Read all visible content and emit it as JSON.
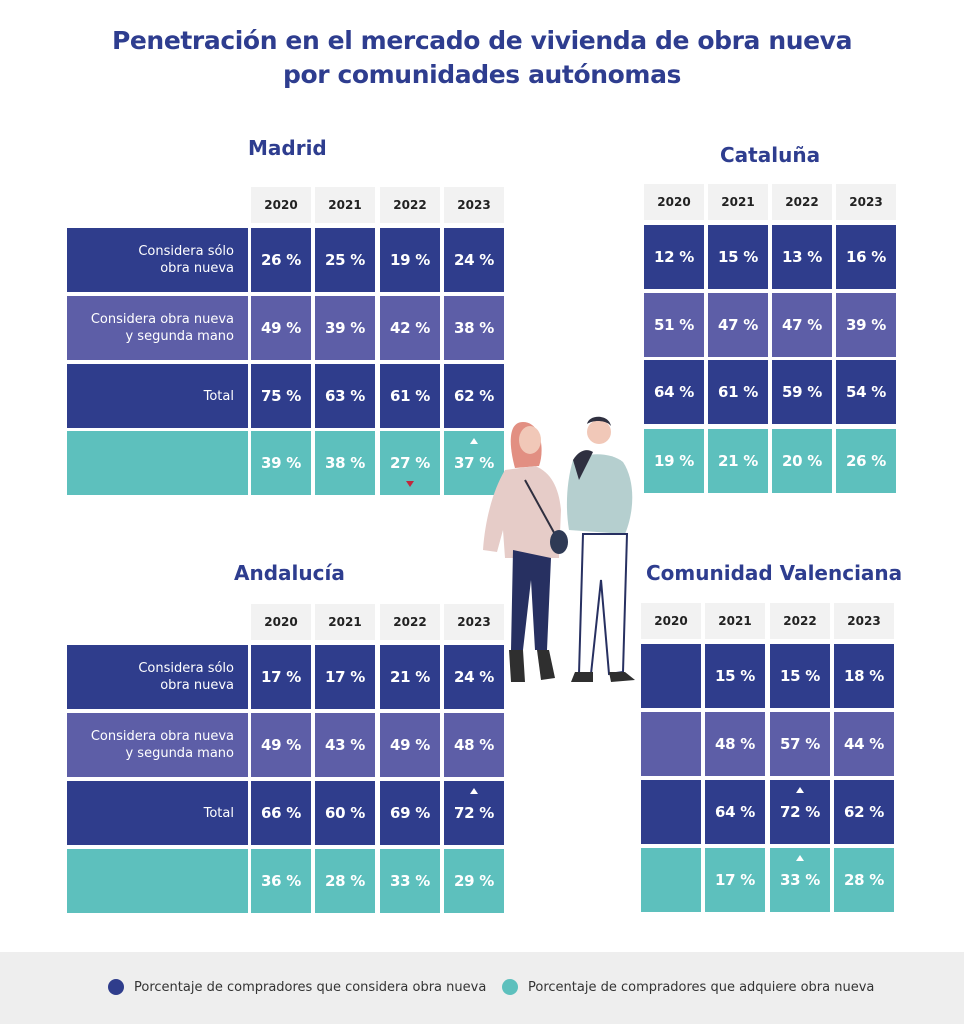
{
  "title_line1": "Penetración en el mercado de vivienda de obra nueva",
  "title_line2": "por comunidades autónomas",
  "colors": {
    "considera_dark": "#2f3d8c",
    "considera_mid": "#5d5ea7",
    "adquiere_teal": "#5dc0bd",
    "title_blue": "#2e3d8f",
    "down_marker": "#c0283d"
  },
  "row_labels": [
    "Considera sólo\nobra nueva",
    "Considera obra nueva\ny segunda mano",
    "Total",
    ""
  ],
  "legend": {
    "considera": "Porcentaje de compradores que considera obra nueva",
    "adquiere": "Porcentaje de compradores que adquiere obra nueva"
  },
  "chart_data": [
    {
      "type": "table",
      "title": "Madrid",
      "columns": [
        "2020",
        "2021",
        "2022",
        "2023"
      ],
      "rows": [
        {
          "label": "Considera sólo obra nueva",
          "values": [
            "26 %",
            "25 %",
            "19 %",
            "24 %"
          ],
          "marks": [
            "",
            "",
            "",
            ""
          ]
        },
        {
          "label": "Considera obra nueva y segunda mano",
          "values": [
            "49 %",
            "39 %",
            "42 %",
            "38 %"
          ],
          "marks": [
            "",
            "",
            "",
            ""
          ]
        },
        {
          "label": "Total",
          "values": [
            "75 %",
            "63 %",
            "61 %",
            "62 %"
          ],
          "marks": [
            "",
            "",
            "",
            ""
          ]
        },
        {
          "label": "",
          "values": [
            "39 %",
            "38 %",
            "27 %",
            "37 %"
          ],
          "marks": [
            "",
            "",
            "down",
            "up"
          ]
        }
      ]
    },
    {
      "type": "table",
      "title": "Cataluña",
      "columns": [
        "2020",
        "2021",
        "2022",
        "2023"
      ],
      "rows": [
        {
          "label": "Considera sólo obra nueva",
          "values": [
            "12 %",
            "15 %",
            "13 %",
            "16 %"
          ],
          "marks": [
            "",
            "",
            "",
            ""
          ]
        },
        {
          "label": "Considera obra nueva y segunda mano",
          "values": [
            "51 %",
            "47 %",
            "47 %",
            "39 %"
          ],
          "marks": [
            "",
            "",
            "",
            ""
          ]
        },
        {
          "label": "Total",
          "values": [
            "64 %",
            "61 %",
            "59 %",
            "54 %"
          ],
          "marks": [
            "",
            "",
            "",
            ""
          ]
        },
        {
          "label": "",
          "values": [
            "19 %",
            "21 %",
            "20 %",
            "26 %"
          ],
          "marks": [
            "",
            "",
            "",
            ""
          ]
        }
      ]
    },
    {
      "type": "table",
      "title": "Andalucía",
      "columns": [
        "2020",
        "2021",
        "2022",
        "2023"
      ],
      "rows": [
        {
          "label": "Considera sólo obra nueva",
          "values": [
            "17 %",
            "17 %",
            "21 %",
            "24 %"
          ],
          "marks": [
            "",
            "",
            "",
            ""
          ]
        },
        {
          "label": "Considera obra nueva y segunda mano",
          "values": [
            "49 %",
            "43 %",
            "49 %",
            "48 %"
          ],
          "marks": [
            "",
            "",
            "",
            ""
          ]
        },
        {
          "label": "Total",
          "values": [
            "66 %",
            "60 %",
            "69 %",
            "72 %"
          ],
          "marks": [
            "",
            "",
            "",
            "up"
          ]
        },
        {
          "label": "",
          "values": [
            "36 %",
            "28 %",
            "33 %",
            "29 %"
          ],
          "marks": [
            "",
            "",
            "",
            ""
          ]
        }
      ]
    },
    {
      "type": "table",
      "title": "Comunidad Valenciana",
      "columns": [
        "2020",
        "2021",
        "2022",
        "2023"
      ],
      "rows": [
        {
          "label": "Considera sólo obra nueva",
          "values": [
            "",
            "15 %",
            "15 %",
            "18 %"
          ],
          "marks": [
            "",
            "",
            "",
            ""
          ]
        },
        {
          "label": "Considera obra nueva y segunda mano",
          "values": [
            "",
            "48 %",
            "57 %",
            "44 %"
          ],
          "marks": [
            "",
            "",
            "",
            ""
          ]
        },
        {
          "label": "Total",
          "values": [
            "",
            "64 %",
            "72 %",
            "62 %"
          ],
          "marks": [
            "",
            "",
            "up",
            ""
          ]
        },
        {
          "label": "",
          "values": [
            "",
            "17 %",
            "33 %",
            "28 %"
          ],
          "marks": [
            "",
            "",
            "up",
            ""
          ]
        }
      ]
    }
  ]
}
